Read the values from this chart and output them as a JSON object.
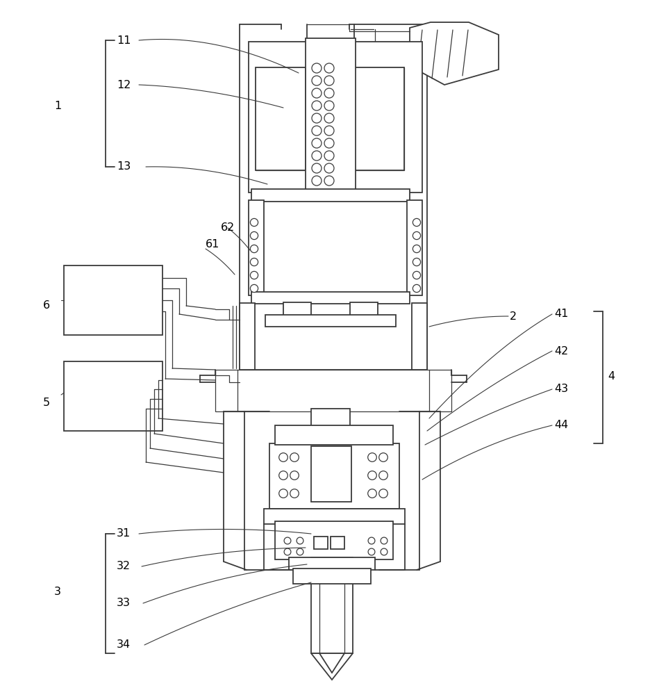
{
  "bg_color": "#ffffff",
  "line_color": "#3a3a3a",
  "figsize": [
    9.37,
    10.0
  ],
  "dpi": 100,
  "lw_main": 1.3,
  "lw_thin": 0.9,
  "lw_leader": 0.8
}
